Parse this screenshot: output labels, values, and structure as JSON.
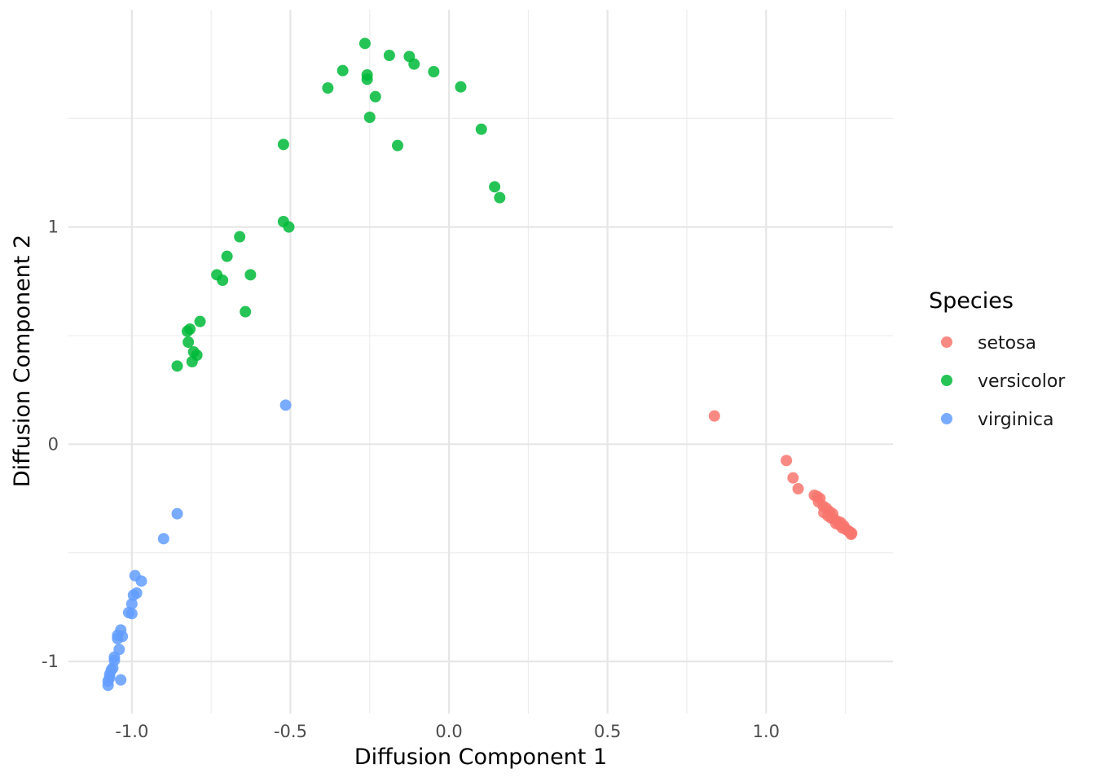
{
  "chart_data": {
    "type": "scatter",
    "title": "",
    "xlabel": "Diffusion Component 1",
    "ylabel": "Diffusion Component 2",
    "xlim": [
      -1.2,
      1.4
    ],
    "ylim": [
      -1.24,
      2.0
    ],
    "x_ticks": [
      -1.0,
      -0.5,
      0.0,
      0.5,
      1.0
    ],
    "x_tick_labels": [
      "-1.0",
      "-0.5",
      "0.0",
      "0.5",
      "1.0"
    ],
    "y_ticks": [
      -1,
      0,
      1
    ],
    "y_tick_labels": [
      "-1",
      "0",
      "1"
    ],
    "grid": true,
    "legend": {
      "title": "Species",
      "position": "right"
    },
    "series": [
      {
        "name": "setosa",
        "color": "#F8766D",
        "points": [
          [
            0.837,
            0.13
          ],
          [
            1.064,
            -0.075
          ],
          [
            1.085,
            -0.155
          ],
          [
            1.101,
            -0.205
          ],
          [
            1.152,
            -0.235
          ],
          [
            1.161,
            -0.24
          ],
          [
            1.17,
            -0.25
          ],
          [
            1.165,
            -0.265
          ],
          [
            1.18,
            -0.285
          ],
          [
            1.19,
            -0.295
          ],
          [
            1.2,
            -0.31
          ],
          [
            1.182,
            -0.315
          ],
          [
            1.21,
            -0.32
          ],
          [
            1.195,
            -0.33
          ],
          [
            1.205,
            -0.34
          ],
          [
            1.215,
            -0.345
          ],
          [
            1.225,
            -0.355
          ],
          [
            1.235,
            -0.36
          ],
          [
            1.22,
            -0.365
          ],
          [
            1.245,
            -0.375
          ],
          [
            1.24,
            -0.385
          ],
          [
            1.25,
            -0.39
          ],
          [
            1.255,
            -0.395
          ],
          [
            1.26,
            -0.4
          ],
          [
            1.265,
            -0.405
          ],
          [
            1.27,
            -0.41
          ],
          [
            1.268,
            -0.415
          ],
          [
            1.23,
            -0.37
          ]
        ]
      },
      {
        "name": "versicolor",
        "color": "#00BA38",
        "points": [
          [
            -0.265,
            1.845
          ],
          [
            -0.188,
            1.79
          ],
          [
            -0.125,
            1.785
          ],
          [
            -0.11,
            1.75
          ],
          [
            -0.335,
            1.72
          ],
          [
            -0.258,
            1.7
          ],
          [
            -0.258,
            1.68
          ],
          [
            -0.048,
            1.715
          ],
          [
            -0.382,
            1.64
          ],
          [
            0.037,
            1.645
          ],
          [
            -0.232,
            1.6
          ],
          [
            -0.25,
            1.505
          ],
          [
            0.102,
            1.45
          ],
          [
            -0.522,
            1.38
          ],
          [
            -0.162,
            1.375
          ],
          [
            0.144,
            1.185
          ],
          [
            0.16,
            1.135
          ],
          [
            -0.522,
            1.025
          ],
          [
            -0.505,
            1.0
          ],
          [
            -0.66,
            0.955
          ],
          [
            -0.7,
            0.865
          ],
          [
            -0.732,
            0.78
          ],
          [
            -0.714,
            0.755
          ],
          [
            -0.626,
            0.78
          ],
          [
            -0.642,
            0.61
          ],
          [
            -0.785,
            0.565
          ],
          [
            -0.825,
            0.52
          ],
          [
            -0.817,
            0.53
          ],
          [
            -0.822,
            0.47
          ],
          [
            -0.805,
            0.425
          ],
          [
            -0.795,
            0.41
          ],
          [
            -0.81,
            0.38
          ],
          [
            -0.857,
            0.36
          ]
        ]
      },
      {
        "name": "virginica",
        "color": "#619CFF",
        "points": [
          [
            -0.515,
            0.18
          ],
          [
            -0.857,
            -0.32
          ],
          [
            -0.9,
            -0.435
          ],
          [
            -0.99,
            -0.605
          ],
          [
            -0.97,
            -0.63
          ],
          [
            -0.985,
            -0.685
          ],
          [
            -0.995,
            -0.695
          ],
          [
            -1.0,
            -0.735
          ],
          [
            -1.01,
            -0.775
          ],
          [
            -1.0,
            -0.78
          ],
          [
            -1.035,
            -0.855
          ],
          [
            -1.045,
            -0.88
          ],
          [
            -1.03,
            -0.885
          ],
          [
            -1.045,
            -0.895
          ],
          [
            -1.04,
            -0.945
          ],
          [
            -1.055,
            -0.98
          ],
          [
            -1.055,
            -0.995
          ],
          [
            -1.06,
            -1.03
          ],
          [
            -1.065,
            -1.04
          ],
          [
            -1.07,
            -1.06
          ],
          [
            -1.07,
            -1.075
          ],
          [
            -1.075,
            -1.09
          ],
          [
            -1.075,
            -1.11
          ],
          [
            -1.035,
            -1.085
          ]
        ]
      }
    ]
  }
}
